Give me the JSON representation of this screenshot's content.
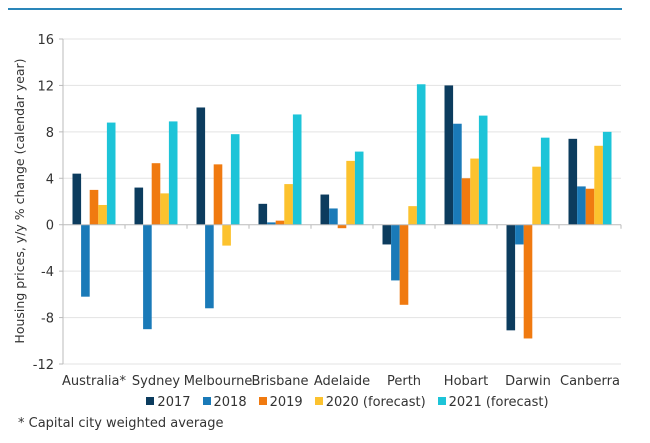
{
  "chart_data": {
    "type": "bar",
    "title": "",
    "xlabel": "",
    "ylabel": "Housing prices, y/y % change (calendar year)",
    "ylim": [
      -12,
      16
    ],
    "yticks": [
      -12,
      -8,
      -4,
      0,
      4,
      8,
      12,
      16
    ],
    "grid": true,
    "legend_position": "bottom",
    "categories": [
      "Australia*",
      "Sydney",
      "Melbourne",
      "Brisbane",
      "Adelaide",
      "Perth",
      "Hobart",
      "Darwin",
      "Canberra"
    ],
    "series": [
      {
        "name": "2017",
        "color": "#0c3c5e",
        "values": [
          4.4,
          3.2,
          10.1,
          1.8,
          2.6,
          -1.7,
          12.0,
          -9.1,
          7.4
        ]
      },
      {
        "name": "2018",
        "color": "#1a7ab8",
        "values": [
          -6.2,
          -9.0,
          -7.2,
          0.2,
          1.4,
          -4.8,
          8.7,
          -1.7,
          3.3
        ]
      },
      {
        "name": "2019",
        "color": "#f07a10",
        "values": [
          3.0,
          5.3,
          5.2,
          0.35,
          -0.3,
          -6.9,
          4.0,
          -9.8,
          3.1
        ]
      },
      {
        "name": "2020 (forecast)",
        "color": "#fcc22e",
        "values": [
          1.7,
          2.7,
          -1.8,
          3.5,
          5.5,
          1.6,
          5.7,
          5.0,
          6.8
        ]
      },
      {
        "name": "2021 (forecast)",
        "color": "#1dc4d8",
        "values": [
          8.8,
          8.9,
          7.8,
          9.5,
          6.3,
          12.1,
          9.4,
          7.5,
          8.0
        ]
      }
    ]
  },
  "footnote": "* Capital city weighted average"
}
